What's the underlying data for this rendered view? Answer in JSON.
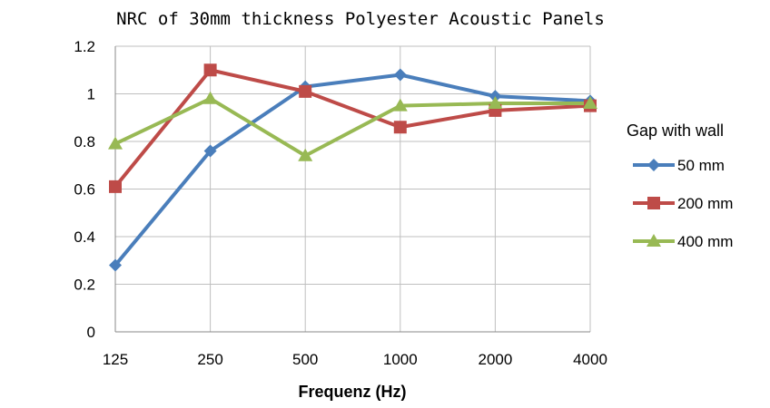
{
  "chart_data": {
    "type": "line",
    "title": "NRC of 30mm thickness Polyester Acoustic Panels",
    "xlabel": "Frequenz (Hz)",
    "ylabel": "",
    "categories": [
      "125",
      "250",
      "500",
      "1000",
      "2000",
      "4000"
    ],
    "ylim": [
      0,
      1.2
    ],
    "yticks": [
      "0",
      "0.2",
      "0.4",
      "0.6",
      "0.8",
      "1",
      "1.2"
    ],
    "grid": true,
    "legend": {
      "title": "Gap with wall",
      "placement": "right"
    },
    "series": [
      {
        "name": "50 mm",
        "marker": "diamond",
        "color": "#4a7ebb",
        "values": [
          0.28,
          0.76,
          1.03,
          1.08,
          0.99,
          0.97
        ]
      },
      {
        "name": "200 mm",
        "marker": "square",
        "color": "#be4b48",
        "values": [
          0.61,
          1.1,
          1.01,
          0.86,
          0.93,
          0.95
        ]
      },
      {
        "name": "400 mm",
        "marker": "triangle",
        "color": "#98b954",
        "values": [
          0.79,
          0.98,
          0.74,
          0.95,
          0.96,
          0.96
        ]
      }
    ]
  }
}
